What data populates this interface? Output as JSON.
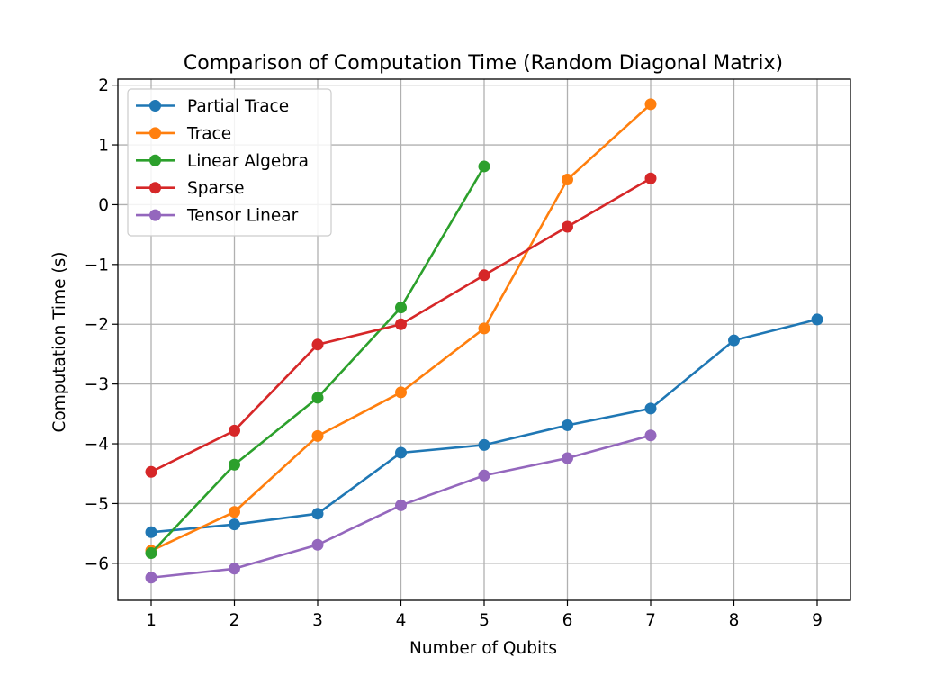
{
  "chart_data": {
    "type": "line",
    "title": "Comparison of Computation Time (Random Diagonal Matrix)",
    "xlabel": "Number of Qubits",
    "ylabel": "Computation Time (s)",
    "xlim": [
      0.6,
      9.4
    ],
    "ylim": [
      -6.62,
      2.1
    ],
    "x_ticks": [
      1,
      2,
      3,
      4,
      5,
      6,
      7,
      8,
      9
    ],
    "y_ticks": [
      -6,
      -5,
      -4,
      -3,
      -2,
      -1,
      0,
      1,
      2
    ],
    "y_tick_labels": [
      "−6",
      "−5",
      "−4",
      "−3",
      "−2",
      "−1",
      "0",
      "1",
      "2"
    ],
    "grid": true,
    "legend_position": "upper-left",
    "series": [
      {
        "name": "Partial Trace",
        "color": "#1f77b4",
        "x": [
          1,
          2,
          3,
          4,
          5,
          6,
          7,
          8,
          9
        ],
        "y": [
          -5.48,
          -5.35,
          -5.17,
          -4.15,
          -4.02,
          -3.69,
          -3.41,
          -2.27,
          -1.92
        ]
      },
      {
        "name": "Trace",
        "color": "#ff7f0e",
        "x": [
          1,
          2,
          3,
          4,
          5,
          6,
          7
        ],
        "y": [
          -5.79,
          -5.14,
          -3.87,
          -3.14,
          -2.07,
          0.42,
          1.68
        ]
      },
      {
        "name": "Linear Algebra",
        "color": "#2ca02c",
        "x": [
          1,
          2,
          3,
          4,
          5
        ],
        "y": [
          -5.83,
          -4.35,
          -3.23,
          -1.72,
          0.64
        ]
      },
      {
        "name": "Sparse",
        "color": "#d62728",
        "x": [
          1,
          2,
          3,
          4,
          5,
          6,
          7
        ],
        "y": [
          -4.47,
          -3.78,
          -2.34,
          -2.0,
          -1.18,
          -0.37,
          0.44
        ]
      },
      {
        "name": "Tensor Linear",
        "color": "#9467bd",
        "x": [
          1,
          2,
          3,
          4,
          5,
          6,
          7
        ],
        "y": [
          -6.24,
          -6.09,
          -5.69,
          -5.03,
          -4.53,
          -4.24,
          -3.86
        ]
      }
    ]
  }
}
